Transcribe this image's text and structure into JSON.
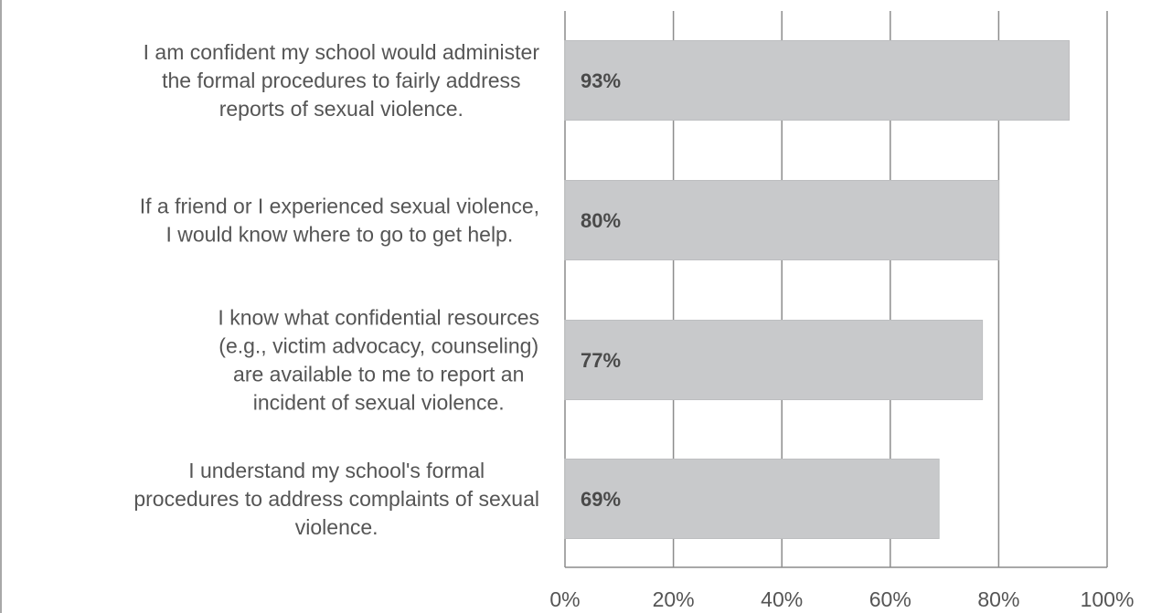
{
  "chart_data": {
    "type": "bar",
    "orientation": "horizontal",
    "categories": [
      "I am confident my school would administer the formal procedures to fairly address reports of sexual violence.",
      "If a friend or I experienced sexual violence, I would know where to go to get help.",
      "I know what confidential resources (e.g., victim advocacy, counseling) are available to me to report an incident of sexual violence.",
      "I understand my school's formal procedures to address complaints of sexual violence."
    ],
    "category_lines": [
      [
        "I am confident my school would administer",
        "the formal procedures to fairly address",
        "reports of sexual violence."
      ],
      [
        "If a friend or I experienced sexual violence,",
        "I would know where to go to get help."
      ],
      [
        "I know what confidential resources",
        "(e.g., victim advocacy, counseling)",
        "are available to me to report an",
        "incident of sexual violence."
      ],
      [
        "I understand my school's formal",
        "procedures to address complaints of sexual",
        "violence."
      ]
    ],
    "values": [
      93,
      80,
      77,
      69
    ],
    "data_labels": [
      "93%",
      "80%",
      "77%",
      "69%"
    ],
    "xlim": [
      0,
      100
    ],
    "xticks": [
      0,
      20,
      40,
      60,
      80,
      100
    ],
    "xtick_labels": [
      "0%",
      "20%",
      "40%",
      "60%",
      "80%",
      "100%"
    ],
    "grid": "vertical",
    "legend": "none",
    "title": "",
    "xlabel": "",
    "ylabel": "",
    "colors": {
      "bar": "#c8c9cb",
      "grid": "#8c8c8c",
      "text": "#555555",
      "data_label": "#4a4a4a"
    }
  }
}
